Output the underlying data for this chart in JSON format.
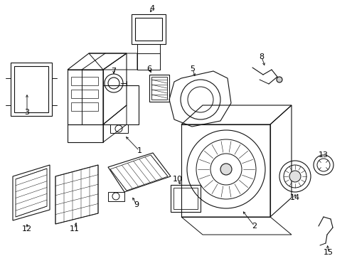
{
  "bg_color": "#ffffff",
  "line_color": "#111111",
  "label_color": "#000000",
  "figsize": [
    4.89,
    3.6
  ],
  "dpi": 100
}
